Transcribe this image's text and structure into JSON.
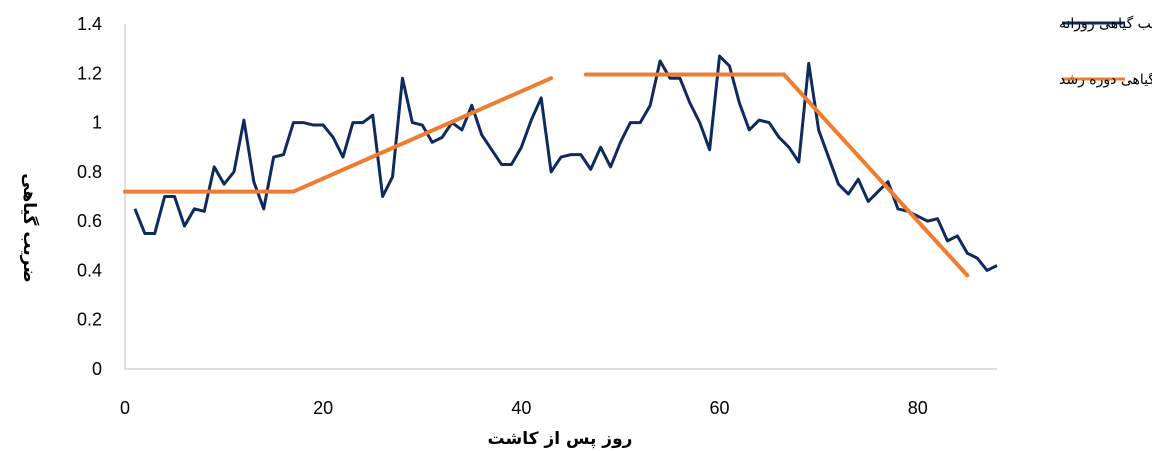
{
  "chart_data": {
    "type": "line",
    "title": "",
    "xlabel": "روز پس از کاشت",
    "ylabel": "ضریب گیاهی",
    "xlim": [
      0,
      88
    ],
    "ylim": [
      0,
      1.4
    ],
    "x_ticks": [
      "0",
      "20",
      "40",
      "60",
      "80"
    ],
    "y_ticks": [
      "0",
      "0.2",
      "0.4",
      "0.6",
      "0.8",
      "1",
      "1.2",
      "1.4"
    ],
    "grid": false,
    "legend_position": "top-right",
    "series": [
      {
        "name": "ضریب گیاهی روزانه",
        "color": "#0e2a5e",
        "x": [
          1,
          2,
          3,
          4,
          5,
          6,
          7,
          8,
          9,
          10,
          11,
          12,
          13,
          14,
          15,
          16,
          17,
          18,
          19,
          20,
          21,
          22,
          23,
          24,
          25,
          26,
          27,
          28,
          29,
          30,
          31,
          32,
          33,
          34,
          35,
          36,
          37,
          38,
          39,
          40,
          41,
          42,
          43,
          44,
          45,
          46,
          47,
          48,
          49,
          50,
          51,
          52,
          53,
          54,
          55,
          56,
          57,
          58,
          59,
          60,
          61,
          62,
          63,
          64,
          65,
          66,
          67,
          68,
          69,
          70,
          71,
          72,
          73,
          74,
          75,
          76,
          77,
          78,
          79,
          80,
          81,
          82,
          83,
          84,
          85,
          86,
          87,
          88
        ],
        "y": [
          0.65,
          0.55,
          0.55,
          0.7,
          0.7,
          0.58,
          0.65,
          0.64,
          0.82,
          0.75,
          0.8,
          1.01,
          0.76,
          0.65,
          0.86,
          0.87,
          1.0,
          1.0,
          0.99,
          0.99,
          0.94,
          0.86,
          1.0,
          1.0,
          1.03,
          0.7,
          0.78,
          1.18,
          1.0,
          0.99,
          0.92,
          0.94,
          1.0,
          0.97,
          1.07,
          0.95,
          0.89,
          0.83,
          0.83,
          0.9,
          1.01,
          1.1,
          0.8,
          0.86,
          0.87,
          0.87,
          0.81,
          0.9,
          0.82,
          0.92,
          1.0,
          1.0,
          1.07,
          1.25,
          1.18,
          1.18,
          1.08,
          1.0,
          0.89,
          1.27,
          1.23,
          1.08,
          0.97,
          1.01,
          1.0,
          0.94,
          0.9,
          0.84,
          1.24,
          0.97,
          0.86,
          0.75,
          0.71,
          0.77,
          0.68,
          0.72,
          0.76,
          0.65,
          0.64,
          0.62,
          0.6,
          0.61,
          0.52,
          0.54,
          0.47,
          0.45,
          0.4,
          0.42
        ]
      },
      {
        "name": "ضریب گیاهی دوره رشد",
        "color": "#ed7d31",
        "segments": [
          [
            [
              0,
              0.72
            ],
            [
              17,
              0.72
            ]
          ],
          [
            [
              17,
              0.72
            ],
            [
              43,
              1.18
            ]
          ],
          [
            [
              46.5,
              1.195
            ],
            [
              66.5,
              1.195
            ]
          ],
          [
            [
              66.5,
              1.195
            ],
            [
              85,
              0.38
            ]
          ]
        ]
      }
    ]
  }
}
